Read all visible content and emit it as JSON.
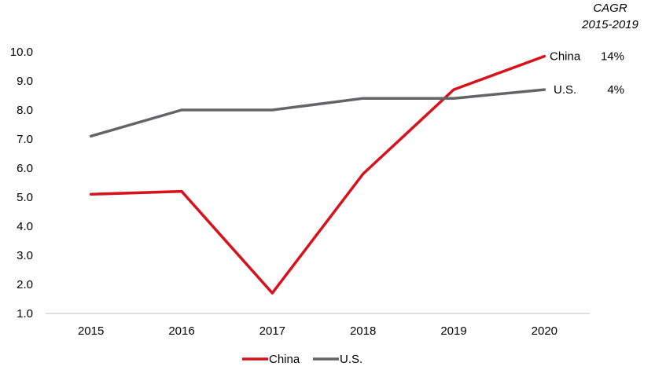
{
  "chart_data": {
    "type": "line",
    "title": "",
    "xlabel": "",
    "ylabel": "",
    "categories": [
      "2015",
      "2016",
      "2017",
      "2018",
      "2019",
      "2020"
    ],
    "ylim": [
      1.0,
      10.0
    ],
    "yticks": [
      "1.0",
      "2.0",
      "3.0",
      "4.0",
      "5.0",
      "6.0",
      "7.0",
      "8.0",
      "9.0",
      "10.0"
    ],
    "grid": false,
    "legend_position": "bottom",
    "cagr_header": [
      "CAGR",
      "2015-2019"
    ],
    "series": [
      {
        "name": "China",
        "values": [
          5.1,
          5.2,
          1.7,
          5.8,
          8.7,
          9.85
        ],
        "color": "#d7121d",
        "end_label": "China",
        "cagr": "14%"
      },
      {
        "name": "U.S.",
        "values": [
          7.1,
          8.0,
          8.0,
          8.4,
          8.4,
          8.7
        ],
        "color": "#636466",
        "end_label": "U.S.",
        "cagr": "4%"
      }
    ]
  }
}
